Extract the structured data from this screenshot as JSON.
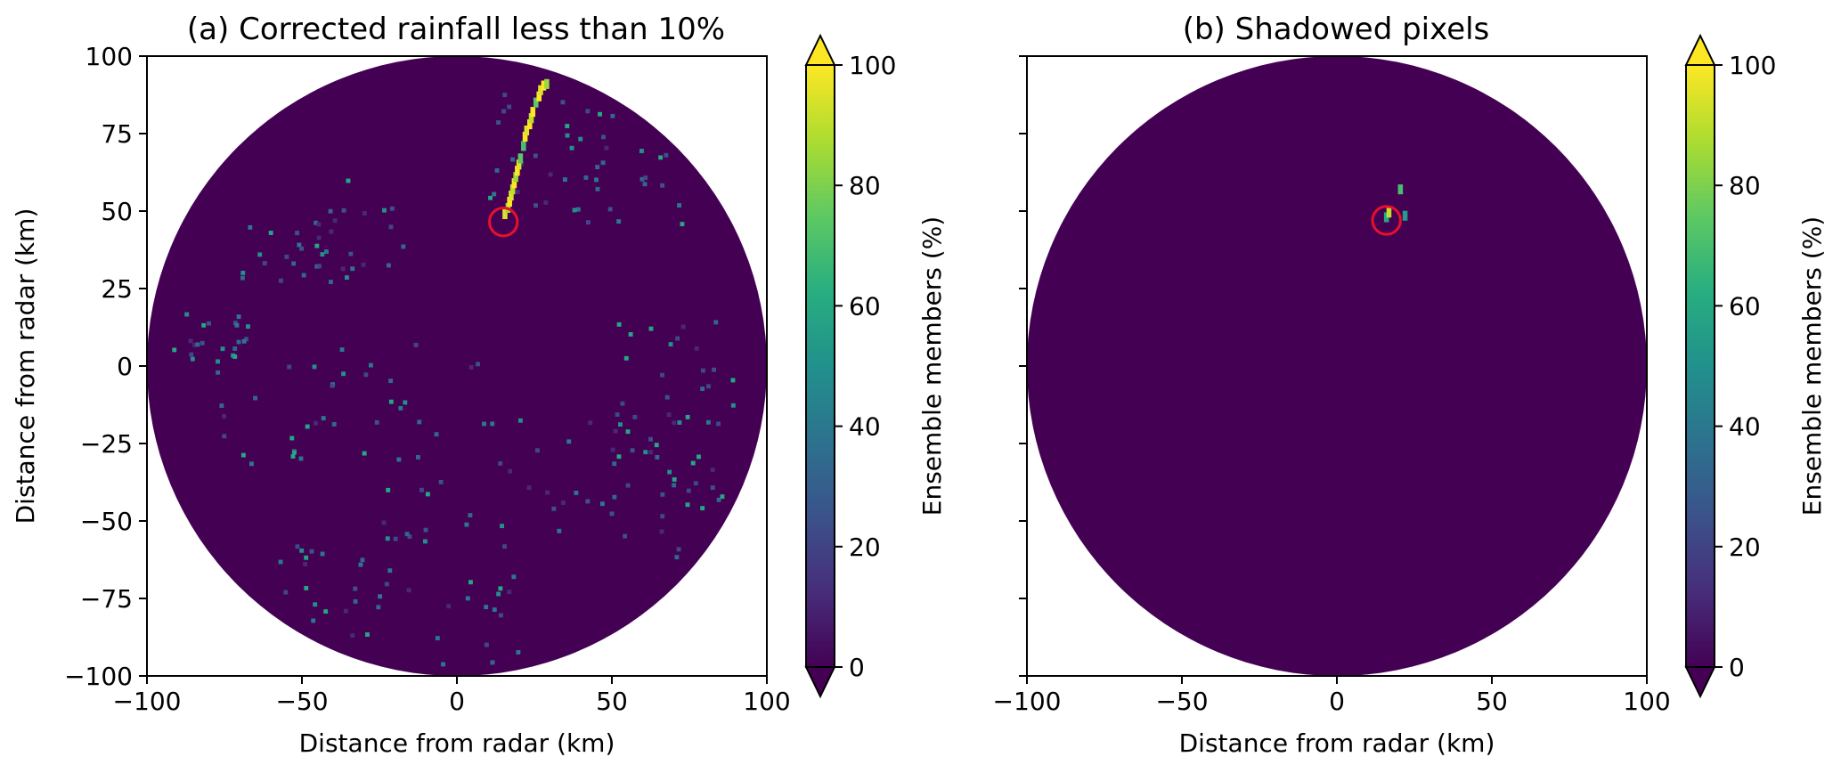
{
  "chart_data": [
    {
      "type": "heatmap",
      "title": "(a) Corrected rainfall less than 10%",
      "xlabel": "Distance from radar (km)",
      "ylabel": "Distance from radar (km)",
      "xlim": [
        -100,
        100
      ],
      "ylim": [
        -100,
        100
      ],
      "xticks": [
        -100,
        -50,
        0,
        50,
        100
      ],
      "yticks": [
        -100,
        -75,
        -50,
        -25,
        0,
        25,
        50,
        75,
        100
      ],
      "xtick_labels": [
        "−100",
        "−50",
        "0",
        "50",
        "100"
      ],
      "ytick_labels": [
        "−100",
        "−75",
        "−50",
        "−25",
        "0",
        "25",
        "50",
        "75",
        "100"
      ],
      "domain_radius_km": 100,
      "background_value": 0,
      "colorbar": {
        "label": "Ensemble members (%)",
        "colormap": "viridis",
        "range": [
          0,
          100
        ],
        "ticks": [
          0,
          20,
          40,
          60,
          80,
          100
        ],
        "tick_labels": [
          "0",
          "20",
          "40",
          "60",
          "80",
          "100"
        ],
        "extend": "both"
      },
      "high_value_pixels": [
        {
          "x": 15.5,
          "y": 49,
          "v": 95
        },
        {
          "x": 16.5,
          "y": 51,
          "v": 85
        },
        {
          "x": 17,
          "y": 53,
          "v": 100
        },
        {
          "x": 17.5,
          "y": 55,
          "v": 95
        },
        {
          "x": 18,
          "y": 57,
          "v": 90
        },
        {
          "x": 18.5,
          "y": 59,
          "v": 100
        },
        {
          "x": 19,
          "y": 61,
          "v": 85
        },
        {
          "x": 19.5,
          "y": 63,
          "v": 100
        },
        {
          "x": 20,
          "y": 65,
          "v": 95
        },
        {
          "x": 20.5,
          "y": 67,
          "v": 75
        },
        {
          "x": 21.5,
          "y": 71,
          "v": 70
        },
        {
          "x": 22,
          "y": 74,
          "v": 100
        },
        {
          "x": 22.5,
          "y": 76,
          "v": 95
        },
        {
          "x": 23.5,
          "y": 78,
          "v": 100
        },
        {
          "x": 24,
          "y": 80,
          "v": 90
        },
        {
          "x": 24.5,
          "y": 82,
          "v": 100
        },
        {
          "x": 25.5,
          "y": 85,
          "v": 75
        },
        {
          "x": 26.5,
          "y": 87,
          "v": 100
        },
        {
          "x": 27,
          "y": 89,
          "v": 95
        },
        {
          "x": 28,
          "y": 90.5,
          "v": 100
        },
        {
          "x": 29,
          "y": 91,
          "v": 85
        }
      ],
      "annotation": {
        "type": "circle",
        "x": 15,
        "y": 46.5,
        "radius_km": 4.5,
        "color": "#e8102a"
      }
    },
    {
      "type": "heatmap",
      "title": "(b) Shadowed pixels",
      "xlabel": "Distance from radar (km)",
      "xlim": [
        -100,
        100
      ],
      "ylim": [
        -100,
        100
      ],
      "xticks": [
        -100,
        -50,
        0,
        50,
        100
      ],
      "xtick_labels": [
        "−100",
        "−50",
        "0",
        "50",
        "100"
      ],
      "domain_radius_km": 100,
      "background_value": 0,
      "colorbar": {
        "label": "Ensemble members (%)",
        "colormap": "viridis",
        "range": [
          0,
          100
        ],
        "ticks": [
          0,
          20,
          40,
          60,
          80,
          100
        ],
        "tick_labels": [
          "0",
          "20",
          "40",
          "60",
          "80",
          "100"
        ],
        "extend": "both"
      },
      "high_value_pixels": [
        {
          "x": 16,
          "y": 48,
          "v": 60
        },
        {
          "x": 16.8,
          "y": 49.5,
          "v": 90
        },
        {
          "x": 20.5,
          "y": 57,
          "v": 70
        },
        {
          "x": 22,
          "y": 48.5,
          "v": 55
        }
      ],
      "annotation": {
        "type": "circle",
        "x": 16,
        "y": 47,
        "radius_km": 4.5,
        "color": "#e8102a"
      }
    }
  ],
  "colors": {
    "viridis_low": "#440154",
    "viridis_high": "#fde725",
    "annotation": "#e8102a"
  }
}
